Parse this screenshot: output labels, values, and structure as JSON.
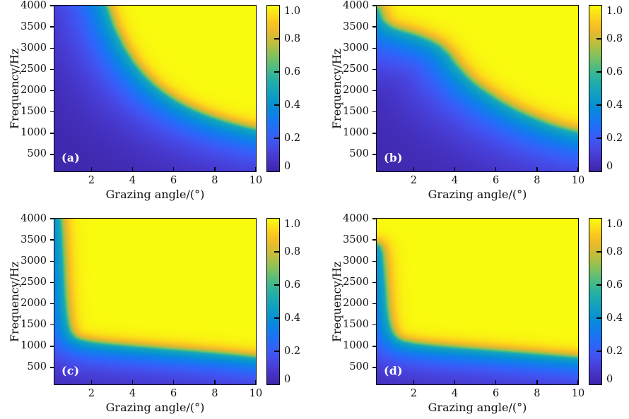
{
  "figure": {
    "description": "Four-panel heatmap figure of reflection/propagation coefficient versus grazing angle and frequency",
    "background": "#ffffff",
    "text_color": "#111111"
  },
  "chart_data": {
    "type": "heatmap",
    "layout": "2x2",
    "colormap": "parula",
    "xlabel": "Grazing angle/(°)",
    "ylabel": "Frequency/Hz",
    "x_range": [
      0.2,
      10
    ],
    "y_range": [
      100,
      4000
    ],
    "x_ticks": [
      2,
      4,
      6,
      8,
      10
    ],
    "y_ticks": [
      500,
      1000,
      1500,
      2000,
      2500,
      3000,
      3500,
      4000
    ],
    "grid": false,
    "colorbar": {
      "range": [
        0,
        1
      ],
      "tick_values": [
        1.0,
        0.8,
        0.6,
        0.4,
        0.2,
        0
      ],
      "tick_labels": [
        "1.0",
        "0.8",
        "0.6",
        "0.4",
        "0.2",
        "0"
      ]
    },
    "value_model": {
      "description": "v = 1 - 0.5*exp(-d/blur_above) above the 0.5-level boundary curve, v = 0.5*exp(-d/blur_below) below it; d = normalized distance to boundary polyline",
      "low_color_value": 0,
      "high_color_value": 1
    },
    "panels": [
      {
        "label": "(a)",
        "boundary_f_at_theta": [
          [
            0.2,
            52500
          ],
          [
            0.5,
            21000
          ],
          [
            1,
            10500
          ],
          [
            1.5,
            7000
          ],
          [
            2,
            5250
          ],
          [
            2.5,
            4200
          ],
          [
            3,
            3500
          ],
          [
            3.5,
            3000
          ],
          [
            4,
            2625
          ],
          [
            4.5,
            2333
          ],
          [
            5,
            2100
          ],
          [
            5.5,
            1909
          ],
          [
            6,
            1750
          ],
          [
            6.5,
            1615
          ],
          [
            7,
            1500
          ],
          [
            7.5,
            1400
          ],
          [
            8,
            1313
          ],
          [
            8.5,
            1235
          ],
          [
            9,
            1167
          ],
          [
            9.5,
            1105
          ],
          [
            10,
            1050
          ]
        ],
        "blur_above": 0.03,
        "blur_below": 0.16
      },
      {
        "label": "(b)",
        "boundary_f_at_theta": [
          [
            0.2,
            3900
          ],
          [
            0.4,
            3650
          ],
          [
            0.6,
            3550
          ],
          [
            0.8,
            3480
          ],
          [
            1.0,
            3430
          ],
          [
            1.3,
            3380
          ],
          [
            1.6,
            3340
          ],
          [
            2.0,
            3280
          ],
          [
            2.4,
            3210
          ],
          [
            2.8,
            3130
          ],
          [
            3.2,
            3020
          ],
          [
            3.6,
            2840
          ],
          [
            4.0,
            2580
          ],
          [
            4.4,
            2360
          ],
          [
            4.8,
            2170
          ],
          [
            5.2,
            2020
          ],
          [
            5.6,
            1890
          ],
          [
            6.0,
            1760
          ],
          [
            6.5,
            1620
          ],
          [
            7.0,
            1490
          ],
          [
            7.5,
            1380
          ],
          [
            8.0,
            1280
          ],
          [
            8.5,
            1185
          ],
          [
            9.0,
            1105
          ],
          [
            9.5,
            1040
          ],
          [
            10,
            985
          ]
        ],
        "blur_above": 0.035,
        "blur_below": 0.18
      },
      {
        "label": "(c)",
        "boundary_f_at_theta": [
          [
            0.2,
            4600
          ],
          [
            0.4,
            4200
          ],
          [
            0.5,
            3600
          ],
          [
            0.55,
            3100
          ],
          [
            0.6,
            2600
          ],
          [
            0.65,
            2150
          ],
          [
            0.72,
            1780
          ],
          [
            0.8,
            1520
          ],
          [
            0.9,
            1360
          ],
          [
            1.0,
            1270
          ],
          [
            1.2,
            1175
          ],
          [
            1.5,
            1115
          ],
          [
            2,
            1065
          ],
          [
            2.5,
            1035
          ],
          [
            3,
            1010
          ],
          [
            4,
            968
          ],
          [
            5,
            928
          ],
          [
            6,
            888
          ],
          [
            7,
            848
          ],
          [
            8,
            806
          ],
          [
            9,
            760
          ],
          [
            10,
            708
          ]
        ],
        "blur_above": 0.028,
        "blur_below": 0.12
      },
      {
        "label": "(d)",
        "boundary_f_at_theta": [
          [
            0.2,
            3360
          ],
          [
            0.3,
            3320
          ],
          [
            0.4,
            3180
          ],
          [
            0.48,
            2850
          ],
          [
            0.55,
            2400
          ],
          [
            0.62,
            1950
          ],
          [
            0.7,
            1650
          ],
          [
            0.8,
            1440
          ],
          [
            0.9,
            1320
          ],
          [
            1.0,
            1240
          ],
          [
            1.2,
            1150
          ],
          [
            1.5,
            1085
          ],
          [
            2.0,
            1035
          ],
          [
            2.5,
            1005
          ],
          [
            3.0,
            978
          ],
          [
            4.0,
            938
          ],
          [
            5.0,
            900
          ],
          [
            6.0,
            862
          ],
          [
            7.0,
            824
          ],
          [
            8.0,
            784
          ],
          [
            9.0,
            744
          ],
          [
            10.0,
            703
          ]
        ],
        "blur_above": 0.028,
        "blur_below": 0.12
      }
    ],
    "parula_stops": [
      "#3e26a8",
      "#4431c0",
      "#473ed6",
      "#454ce9",
      "#3b5bf6",
      "#2969f9",
      "#1877f2",
      "#0c84e5",
      "#0791d4",
      "#0e9dc5",
      "#18a7b7",
      "#26b0a6",
      "#3eb891",
      "#5fbe76",
      "#85c15c",
      "#acc046",
      "#cebc37",
      "#ebbb2c",
      "#fac620",
      "#fbe018",
      "#f9fb0e"
    ],
    "accent_colors": {
      "low": "#3e26a8",
      "mid": "#18a7b7",
      "high": "#f9fb0e",
      "axis": "#000000"
    }
  }
}
